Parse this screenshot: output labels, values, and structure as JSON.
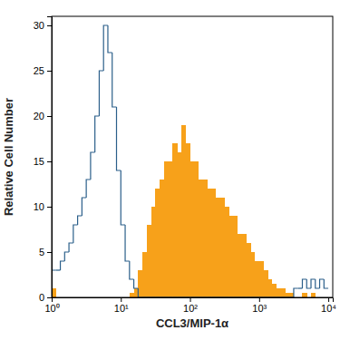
{
  "chart_data": {
    "type": "histogram",
    "log": "x",
    "grid": false,
    "x_label": "CCL3/MIP-1α",
    "y_label": "Relative Cell Number",
    "xlim": [
      1,
      11600
    ],
    "ylim": [
      0,
      31
    ],
    "xticks": [
      {
        "value": 1,
        "label": "10⁰"
      },
      {
        "value": 10,
        "label": "10¹"
      },
      {
        "value": 100,
        "label": "10²"
      },
      {
        "value": 1000,
        "label": "10³"
      },
      {
        "value": 10000,
        "label": "10⁴"
      }
    ],
    "yticks": [
      0,
      5,
      10,
      15,
      20,
      25,
      30
    ],
    "bins": [
      1,
      1.155,
      1.334,
      1.54,
      1.778,
      2.054,
      2.371,
      2.738,
      3.162,
      3.652,
      4.217,
      4.87,
      5.623,
      6.494,
      7.499,
      8.66,
      10,
      11.55,
      13.34,
      15.4,
      17.78,
      20.54,
      23.71,
      27.38,
      31.62,
      36.52,
      42.17,
      48.7,
      56.23,
      64.94,
      74.99,
      86.6,
      100,
      115.5,
      133.4,
      154,
      177.8,
      205.4,
      237.1,
      273.8,
      316.2,
      365.2,
      421.7,
      487,
      562.3,
      649.4,
      749.9,
      866,
      1000,
      1155,
      1334,
      1540,
      1778,
      2054,
      2371,
      2738,
      3162,
      3652,
      4217,
      4870,
      5623,
      6494,
      7499,
      8660,
      10000
    ],
    "series": [
      {
        "type": "bar",
        "color": "#f7a11a",
        "values": [
          1,
          0,
          0,
          0,
          0,
          0,
          0,
          0,
          0,
          0,
          0,
          0,
          0,
          0,
          0,
          0,
          0,
          0,
          0.5,
          1,
          3,
          5,
          8,
          10,
          12,
          13,
          15,
          15,
          17,
          16,
          19,
          17,
          15,
          15,
          13,
          13,
          12,
          12,
          11,
          11,
          10,
          9,
          9,
          7,
          7,
          6,
          5,
          4,
          4,
          3,
          2,
          1.5,
          1,
          1,
          0.5,
          0.5,
          0,
          0,
          0.5,
          0,
          0.5,
          0,
          0,
          0
        ]
      },
      {
        "type": "line",
        "color": "#2b5f8a",
        "values": [
          3,
          3,
          4,
          5,
          6,
          8,
          9,
          11,
          13,
          16,
          20,
          25,
          30,
          27,
          21,
          14,
          8,
          4,
          2,
          1,
          0,
          0,
          0,
          0,
          0,
          0,
          0,
          0,
          0,
          0,
          0,
          0,
          0,
          0,
          0,
          0,
          0,
          0,
          0,
          0,
          0,
          0,
          0,
          0,
          0,
          0,
          0,
          0,
          0,
          0,
          0,
          0,
          0,
          0,
          0,
          0,
          1,
          1,
          2,
          1,
          2,
          1,
          2,
          1
        ]
      }
    ]
  }
}
